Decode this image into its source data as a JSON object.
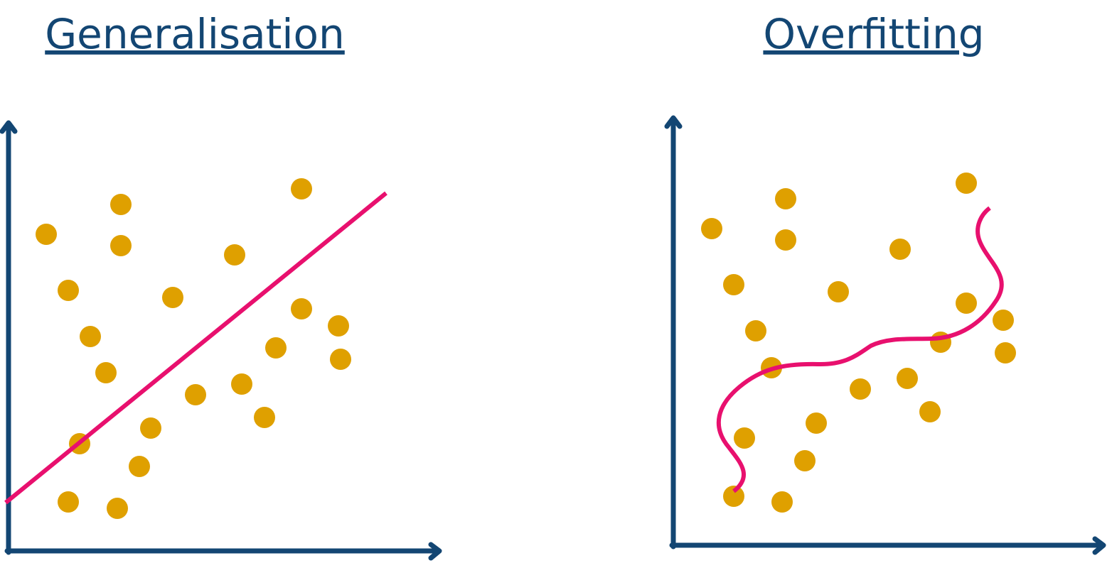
{
  "panels": [
    {
      "title": "Generalisation"
    },
    {
      "title": "Overfitting"
    }
  ]
}
